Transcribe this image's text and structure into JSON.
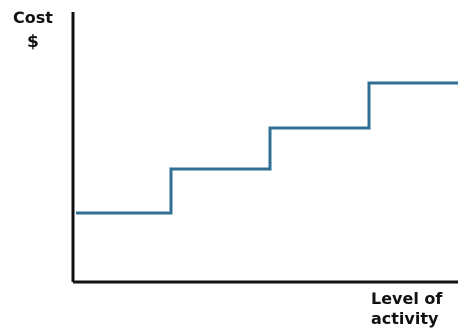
{
  "chart_data": {
    "type": "line",
    "step": true,
    "title": "",
    "ylabel_lines": [
      "Cost",
      "$"
    ],
    "xlabel_lines": [
      "Level of",
      "activity"
    ],
    "xlim": [
      0,
      4
    ],
    "ylim": [
      0,
      5
    ],
    "grid": false,
    "legend": "none",
    "series": [
      {
        "color": "#2f6f93",
        "x": [
          0,
          1,
          1,
          2,
          2,
          3,
          3,
          4
        ],
        "y": [
          1,
          1,
          2,
          2,
          3,
          3,
          4,
          4
        ]
      }
    ],
    "axis_color": "#111111"
  }
}
